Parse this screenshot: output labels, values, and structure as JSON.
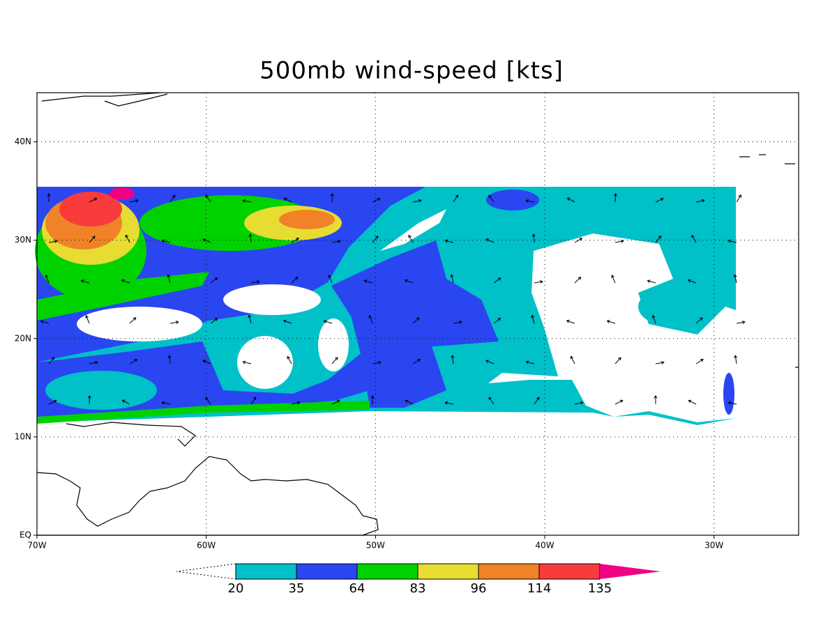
{
  "map": {
    "title": "500mb wind-speed [kts]",
    "xlim": [
      -70,
      -25
    ],
    "ylim": [
      0,
      45
    ],
    "xticks": [
      {
        "value": -70,
        "label": "70W"
      },
      {
        "value": -60,
        "label": "60W"
      },
      {
        "value": -50,
        "label": "50W"
      },
      {
        "value": -40,
        "label": "40W"
      },
      {
        "value": -30,
        "label": "30W"
      }
    ],
    "yticks": [
      {
        "value": 0,
        "label": "EQ"
      },
      {
        "value": 10,
        "label": "10N"
      },
      {
        "value": 20,
        "label": "20N"
      },
      {
        "value": 30,
        "label": "30N"
      },
      {
        "value": 40,
        "label": "40N"
      }
    ],
    "grid": true,
    "colorbar": {
      "levels": [
        20,
        35,
        64,
        83,
        96,
        114,
        135
      ],
      "colors": [
        "#00c0c8",
        "#2a46f0",
        "#00d200",
        "#e6dc32",
        "#f08228",
        "#f83c3c",
        "#f00082"
      ]
    }
  }
}
